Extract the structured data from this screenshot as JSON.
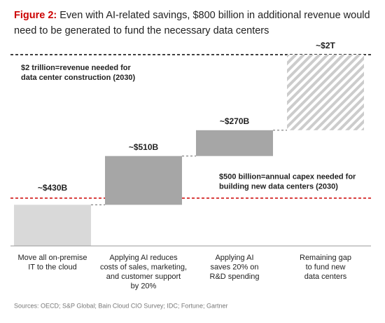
{
  "chart_data": {
    "type": "waterfall",
    "title_label": "Figure 2:",
    "title_lines": [
      "Even with AI-related savings, $800 billion in additional revenue would",
      "need to be generated to fund the necessary data centers"
    ],
    "title_label_color": "#cc0000",
    "categories": [
      [
        "Move all on-premise",
        "IT to the cloud"
      ],
      [
        "Applying AI reduces",
        "costs of sales, marketing,",
        "and customer support",
        "by 20%"
      ],
      [
        "Applying AI",
        "saves 20% on",
        "R&D spending"
      ],
      [
        "Remaining gap",
        "to fund new",
        "data centers"
      ]
    ],
    "values": [
      430,
      510,
      270,
      790
    ],
    "value_labels": [
      "~$430B",
      "~$510B",
      "~$270B",
      null
    ],
    "colors": [
      "#d9d9d9",
      "#a6a6a6",
      "#a6a6a6",
      "#cccccc"
    ],
    "hatched": [
      false,
      false,
      false,
      true
    ],
    "ylim": [
      0,
      2000
    ],
    "reference_lines": [
      {
        "value": 2000,
        "value_label": "~$2T",
        "label_lines": [
          "$2 trillion=revenue needed for",
          "data center construction (2030)"
        ],
        "color": "#000000"
      },
      {
        "value": 500,
        "label_lines": [
          "$500 billion=annual capex needed for",
          "building new data centers (2030)"
        ],
        "color": "#cc0000"
      }
    ],
    "source": "Sources: OECD; S&P Global; Bain Cloud CIO Survey; IDC; Fortune; Gartner"
  }
}
